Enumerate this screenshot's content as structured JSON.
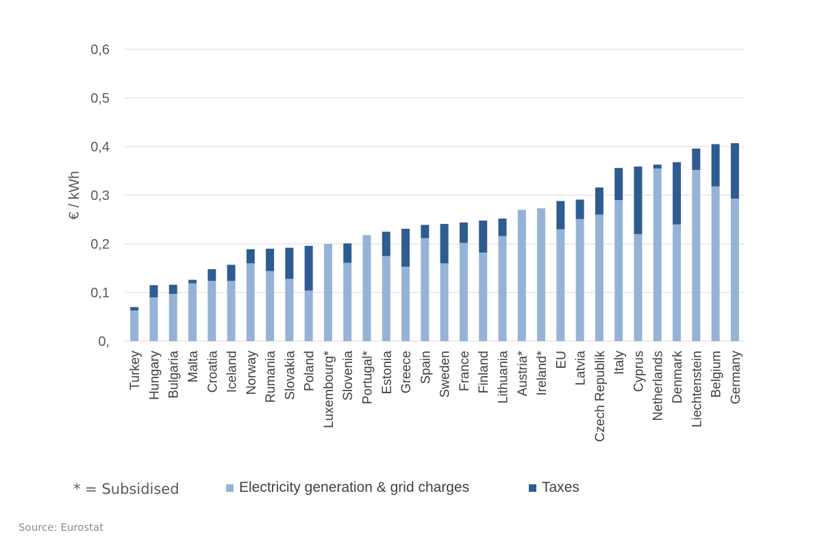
{
  "chart_data": {
    "type": "bar",
    "stacked": true,
    "ylabel": "€ / kWh",
    "ylim": [
      0,
      0.6
    ],
    "yticks": [
      "0,",
      "0,1",
      "0,2",
      "0,3",
      "0,4",
      "0,5",
      "0,6"
    ],
    "grid": true,
    "legend_placement": "bottom",
    "categories": [
      "Turkey",
      "Hungary",
      "Bulgaria",
      "Malta",
      "Croatia",
      "Iceland",
      "Norway",
      "Rumania",
      "Slovakia",
      "Poland",
      "Luxembourg*",
      "Slovenia",
      "Portugal*",
      "Estonia",
      "Greece",
      "Spain",
      "Sweden",
      "France",
      "Finland",
      "Lithuania",
      "Austria*",
      "Ireland*",
      "EU",
      "Latvia",
      "Czech Republik",
      "Italy",
      "Cyprus",
      "Netherlands",
      "Denmark",
      "Liechtenstein",
      "Belgium",
      "Germany"
    ],
    "series": [
      {
        "name": "Electricity generation & grid charges",
        "color": "#95b3d7",
        "values": [
          0.063,
          0.09,
          0.097,
          0.119,
          0.124,
          0.124,
          0.16,
          0.144,
          0.128,
          0.104,
          0.2,
          0.161,
          0.218,
          0.175,
          0.153,
          0.212,
          0.16,
          0.202,
          0.182,
          0.216,
          0.27,
          0.273,
          0.23,
          0.251,
          0.26,
          0.29,
          0.22,
          0.355,
          0.24,
          0.352,
          0.318,
          0.293
        ]
      },
      {
        "name": "Taxes",
        "color": "#2e5c91",
        "values": [
          0.007,
          0.025,
          0.019,
          0.007,
          0.024,
          0.033,
          0.029,
          0.046,
          0.064,
          0.092,
          0.0,
          0.04,
          0.0,
          0.05,
          0.078,
          0.027,
          0.081,
          0.042,
          0.066,
          0.036,
          0.0,
          0.0,
          0.058,
          0.04,
          0.056,
          0.066,
          0.139,
          0.008,
          0.128,
          0.044,
          0.087,
          0.114
        ]
      }
    ]
  },
  "legend_note": "* = Subsidised",
  "source": "Source: Eurostat"
}
